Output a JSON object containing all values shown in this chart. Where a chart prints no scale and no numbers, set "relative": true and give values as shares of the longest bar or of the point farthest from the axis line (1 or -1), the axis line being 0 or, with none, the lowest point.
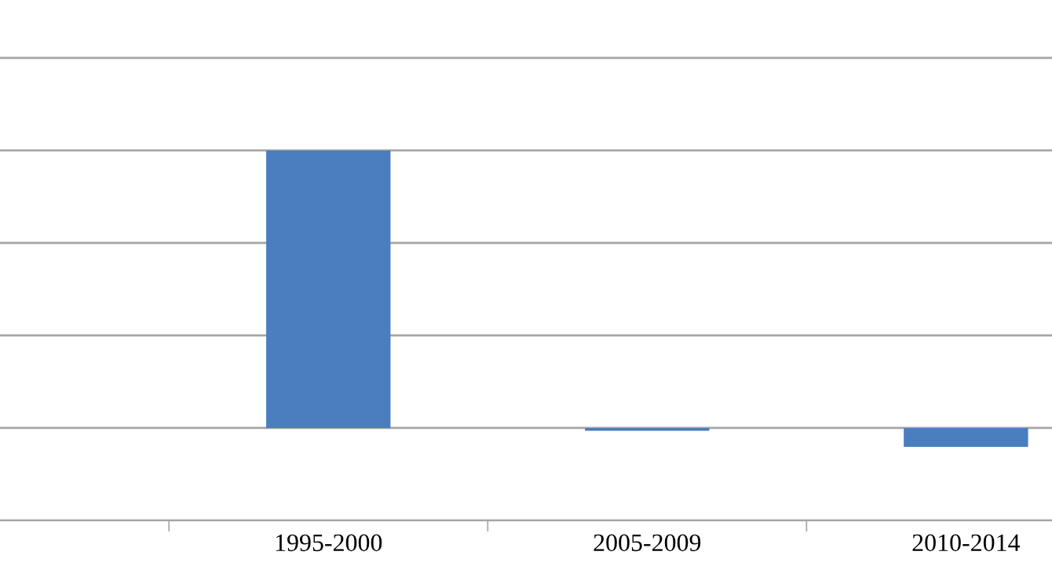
{
  "chart_data": {
    "type": "bar",
    "relative": true,
    "categories": [
      "1995-2000",
      "2005-2009",
      "2010-2014"
    ],
    "values": [
      1,
      -0.01,
      -0.068
    ],
    "color": "#4a7ebf",
    "grid": "y",
    "legend": false
  }
}
